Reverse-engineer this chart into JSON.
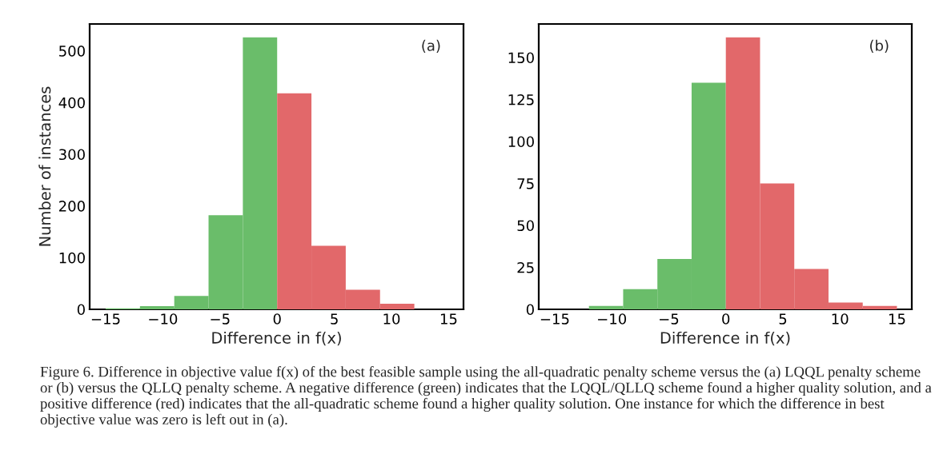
{
  "chart_data": [
    {
      "type": "histogram",
      "bins": [
        -15,
        -12,
        -9,
        -6,
        -3,
        0,
        3,
        6,
        9,
        12
      ],
      "values": [
        2,
        6,
        26,
        182,
        526,
        418,
        123,
        38,
        11
      ],
      "colors": [
        "#6abd6a",
        "#6abd6a",
        "#6abd6a",
        "#6abd6a",
        "#6abd6a",
        "#e2686a",
        "#e2686a",
        "#e2686a",
        "#e2686a"
      ],
      "xlabel": "Difference in f(x)",
      "ylabel": "Number of instances",
      "xlim": [
        -16.4,
        16.3
      ],
      "xticks": [
        {
          "value": -15,
          "label": "−15"
        },
        {
          "value": -10,
          "label": "−10"
        },
        {
          "value": -5,
          "label": "−5"
        },
        0,
        5,
        10,
        15
      ],
      "ylim": [
        0,
        552
      ],
      "yticks": [
        0,
        100,
        200,
        300,
        400,
        500
      ],
      "annotations": [
        "(a)"
      ]
    },
    {
      "type": "histogram",
      "bins": [
        -12,
        -9,
        -6,
        -3,
        0,
        3,
        6,
        9,
        12,
        15
      ],
      "values": [
        2,
        12,
        30,
        135,
        162,
        75,
        24,
        4,
        2
      ],
      "colors": [
        "#6abd6a",
        "#6abd6a",
        "#6abd6a",
        "#6abd6a",
        "#e2686a",
        "#e2686a",
        "#e2686a",
        "#e2686a",
        "#e2686a"
      ],
      "xlabel": "Difference in f(x)",
      "xlim": [
        -16.4,
        16.3
      ],
      "xticks": [
        {
          "value": -15,
          "label": "−15"
        },
        {
          "value": -10,
          "label": "−10"
        },
        {
          "value": -5,
          "label": "−5"
        },
        0,
        5,
        10,
        15
      ],
      "ylim": [
        0,
        170
      ],
      "yticks": [
        0,
        25,
        50,
        75,
        100,
        125,
        150
      ],
      "annotations": [
        "(b)",
        "Figure 6. Difference in objective value f(x) of the best feasible sample using the all-quadratic penalty scheme versus the (a) LQQL penalty scheme or (b) versus the QLLQ penalty scheme. A negative difference (green) indicates that the LQQL/QLLQ scheme found a higher quality solution, and a positive difference (red) indicates that the all-quadratic scheme found a higher quality solution. One instance for which the difference in best objective value was zero is left out in (a)."
      ]
    }
  ]
}
